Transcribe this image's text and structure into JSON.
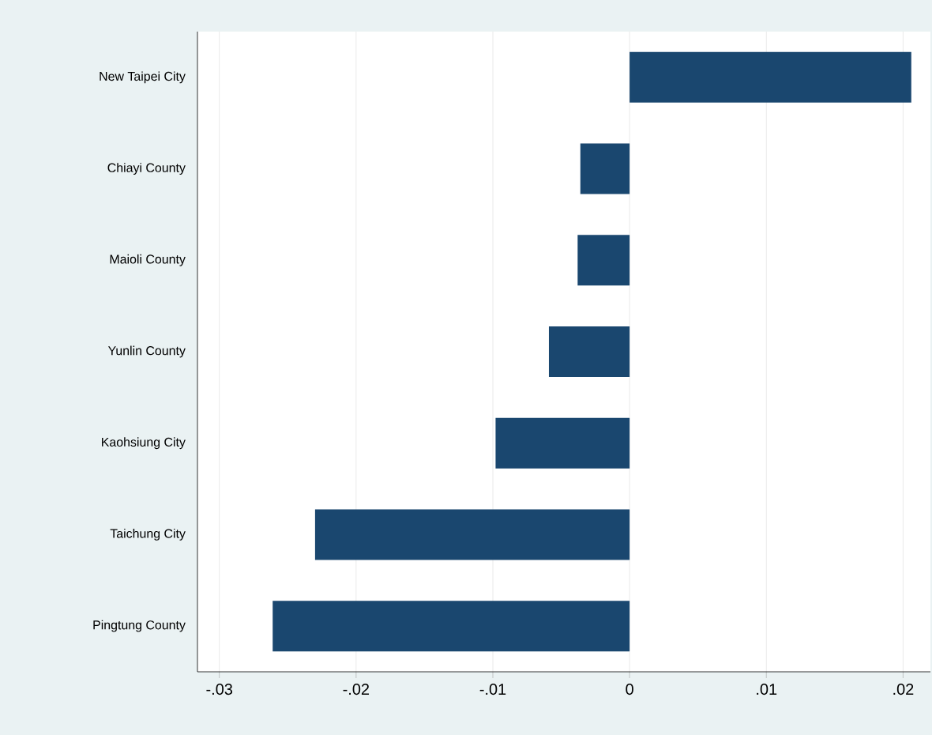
{
  "chart_data": {
    "type": "bar",
    "orientation": "horizontal",
    "categories": [
      "New Taipei City",
      "Chiayi County",
      "Maioli County",
      "Yunlin County",
      "Kaohsiung City",
      "Taichung City",
      "Pingtung County"
    ],
    "values": [
      0.0206,
      -0.0036,
      -0.0038,
      -0.0059,
      -0.0098,
      -0.023,
      -0.0261
    ],
    "color": "#1a476f",
    "xlim": [
      -0.0316,
      0.022
    ],
    "xticks": [
      {
        "value": -0.03,
        "label": "-.03"
      },
      {
        "value": -0.02,
        "label": "-.02"
      },
      {
        "value": -0.01,
        "label": "-.01"
      },
      {
        "value": 0,
        "label": "0"
      },
      {
        "value": 0.01,
        "label": ".01"
      },
      {
        "value": 0.02,
        "label": ".02"
      }
    ],
    "grid": "x"
  }
}
